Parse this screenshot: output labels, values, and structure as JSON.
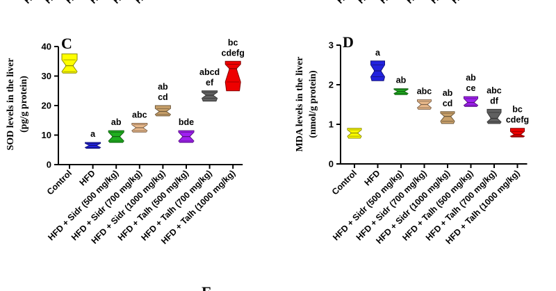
{
  "top_fragments": [
    "HFD",
    "H",
    "HF",
    "HF",
    "H",
    "HFD",
    "H",
    "HFD",
    "HF",
    "HF",
    "HF",
    "HFD"
  ],
  "next_panel_letter": "E",
  "chart_data": [
    {
      "type": "violin",
      "panel": "C",
      "ylabel_lines": [
        "SOD levels in the liver",
        "(pg/g protein)"
      ],
      "ylim": [
        0,
        40
      ],
      "yticks": [
        "0",
        "10",
        "20",
        "30",
        "40"
      ],
      "grid": false,
      "categories": [
        "Control",
        "HFD",
        "HFD + Sidr (500 mg/kg)",
        "HFD + Sidr (700 mg/kg)",
        "HFD + Sidr (1000 mg/kg)",
        "HFD + Talh (500 mg/kg)",
        "HFD + Talh (700 mg/kg)",
        "HFD + Talh (1000 mg/kg)"
      ],
      "colors": [
        "#ffff00",
        "#2222dd",
        "#1fae1f",
        "#e8b88a",
        "#c8a06a",
        "#a020f0",
        "#606060",
        "#ee0000"
      ],
      "series": [
        {
          "min": 31.0,
          "q1": 31.5,
          "median": 33.5,
          "q3": 35.5,
          "max": 37.5
        },
        {
          "min": 5.5,
          "q1": 5.8,
          "median": 6.5,
          "q3": 7.2,
          "max": 7.5
        },
        {
          "min": 7.5,
          "q1": 8.0,
          "median": 9.5,
          "q3": 11.0,
          "max": 11.5
        },
        {
          "min": 11.0,
          "q1": 11.5,
          "median": 12.5,
          "q3": 13.5,
          "max": 14.0
        },
        {
          "min": 16.5,
          "q1": 17.0,
          "median": 18.0,
          "q3": 19.0,
          "max": 20.0
        },
        {
          "min": 7.5,
          "q1": 8.0,
          "median": 9.5,
          "q3": 11.0,
          "max": 11.5
        },
        {
          "min": 21.5,
          "q1": 22.5,
          "median": 23.5,
          "q3": 24.5,
          "max": 25.0
        },
        {
          "min": 25.0,
          "q1": 28.0,
          "median": 32.5,
          "q3": 34.0,
          "max": 35.0
        }
      ],
      "labels": [
        [],
        [
          "a"
        ],
        [
          "ab"
        ],
        [
          "abc"
        ],
        [
          "ab",
          "cd"
        ],
        [
          "bde"
        ],
        [
          "abcd",
          "ef"
        ],
        [
          "bc",
          "cdefg"
        ]
      ]
    },
    {
      "type": "violin",
      "panel": "D",
      "ylabel_lines": [
        "MDA levels in the liver",
        "(nmol/g protein)"
      ],
      "ylim": [
        0,
        3
      ],
      "yticks": [
        "0",
        "1",
        "2",
        "3"
      ],
      "grid": false,
      "categories": [
        "Control",
        "HFD",
        "HFD + Sidr (500 mg/kg)",
        "HFD + Sidr (700 mg/kg)",
        "HFD + Sidr (1000 mg/kg)",
        "HFD + Talh (500 mg/kg)",
        "HFD + Talh (700 mg/kg)",
        "HFD + Talh (1000 mg/kg)"
      ],
      "colors": [
        "#ffff00",
        "#2222dd",
        "#1fae1f",
        "#e8b88a",
        "#c8a06a",
        "#a020f0",
        "#606060",
        "#ee0000"
      ],
      "series": [
        {
          "min": 0.65,
          "q1": 0.7,
          "median": 0.78,
          "q3": 0.86,
          "max": 0.9
        },
        {
          "min": 2.1,
          "q1": 2.2,
          "median": 2.35,
          "q3": 2.5,
          "max": 2.6
        },
        {
          "min": 1.75,
          "q1": 1.78,
          "median": 1.83,
          "q3": 1.88,
          "max": 1.9
        },
        {
          "min": 1.38,
          "q1": 1.42,
          "median": 1.5,
          "q3": 1.58,
          "max": 1.62
        },
        {
          "min": 1.02,
          "q1": 1.08,
          "median": 1.2,
          "q3": 1.28,
          "max": 1.32
        },
        {
          "min": 1.45,
          "q1": 1.48,
          "median": 1.55,
          "q3": 1.65,
          "max": 1.7
        },
        {
          "min": 1.02,
          "q1": 1.06,
          "median": 1.15,
          "q3": 1.3,
          "max": 1.38
        },
        {
          "min": 0.68,
          "q1": 0.7,
          "median": 0.74,
          "q3": 0.82,
          "max": 0.9
        }
      ],
      "labels": [
        [],
        [
          "a"
        ],
        [
          "ab"
        ],
        [
          "abc"
        ],
        [
          "ab",
          "cd"
        ],
        [
          "ab",
          "ce"
        ],
        [
          "abc",
          "df"
        ],
        [
          "bc",
          "cdefg"
        ]
      ]
    }
  ]
}
